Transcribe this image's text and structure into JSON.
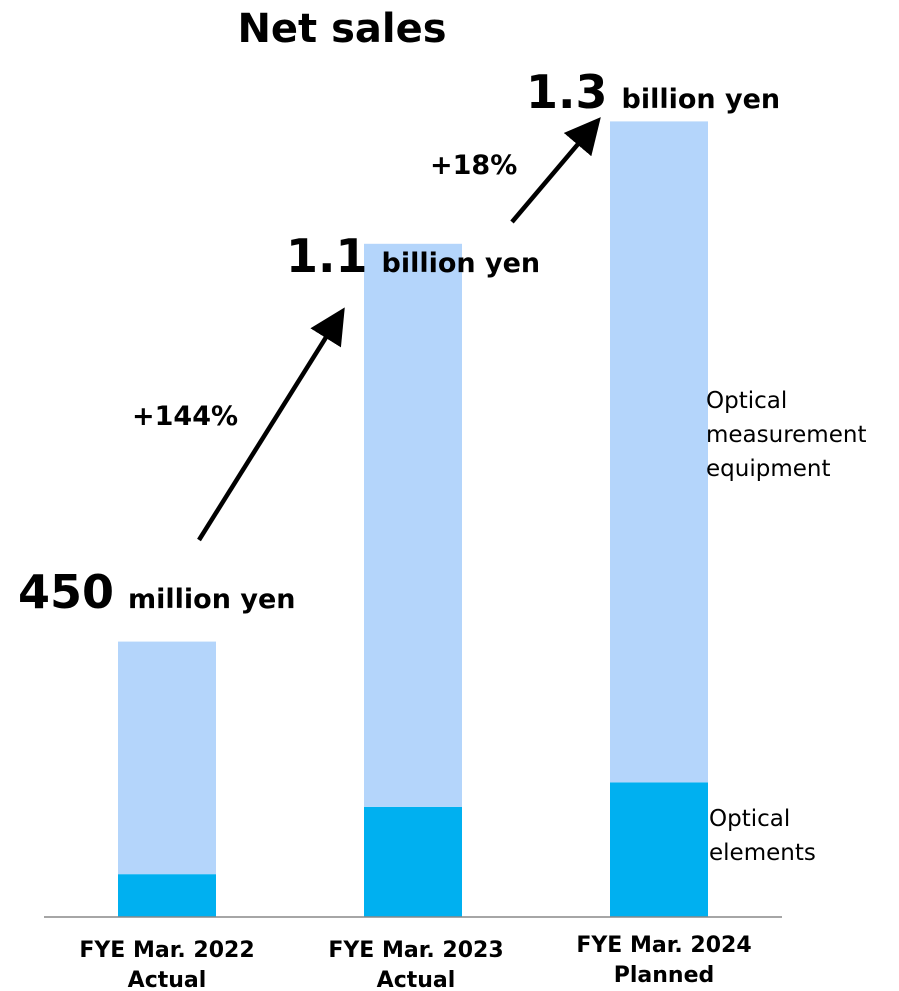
{
  "chart_data": {
    "type": "bar",
    "stacked": true,
    "title": "Net sales",
    "categories": [
      [
        "FYE Mar. 2022",
        "Actual"
      ],
      [
        "FYE Mar. 2023",
        "Actual"
      ],
      [
        "FYE Mar. 2024",
        "Planned"
      ]
    ],
    "series": [
      {
        "name": "Optical elements",
        "legend_lines": [
          "Optical",
          "elements"
        ],
        "color": "#00b0f0",
        "values": [
          0.07,
          0.18,
          0.22
        ]
      },
      {
        "name": "Optical measurement equipment",
        "legend_lines": [
          "Optical",
          "measurement",
          "equipment"
        ],
        "color": "#b4d5fb",
        "values": [
          0.38,
          0.92,
          1.08
        ]
      }
    ],
    "totals": [
      {
        "value": "450",
        "unit": "million yen"
      },
      {
        "value": "1.1",
        "unit": "billion yen"
      },
      {
        "value": "1.3",
        "unit": "billion yen"
      }
    ],
    "growth": [
      "+144%",
      "+18%"
    ],
    "legend_position": "right",
    "grid": false
  }
}
